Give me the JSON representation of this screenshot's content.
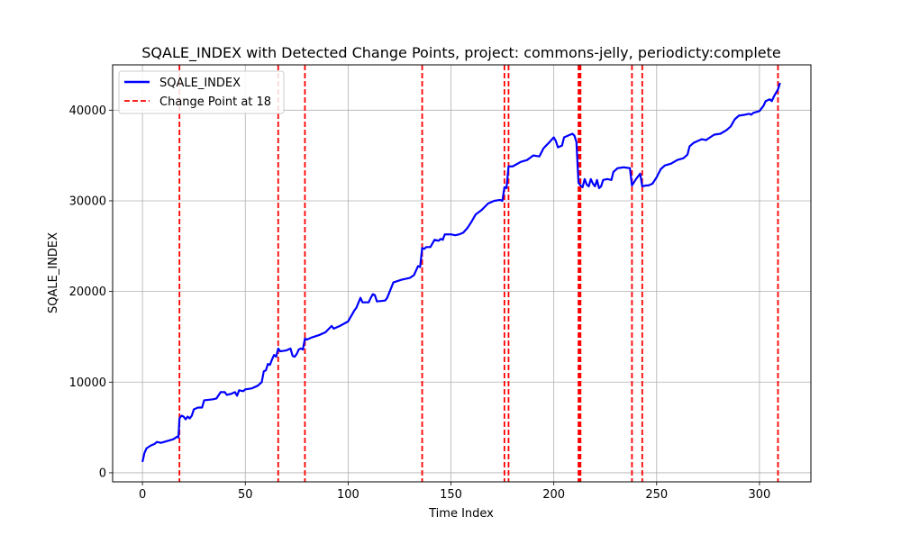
{
  "chart_data": {
    "type": "line",
    "title": "SQALE_INDEX with Detected Change Points, project: commons-jelly, periodicty:complete",
    "xlabel": "Time Index",
    "ylabel": "SQALE_INDEX",
    "xlim": [
      -14.5,
      325
    ],
    "ylim": [
      -1000,
      45000
    ],
    "x_ticks": [
      0,
      50,
      100,
      150,
      200,
      250,
      300
    ],
    "y_ticks": [
      0,
      10000,
      20000,
      30000,
      40000
    ],
    "grid": true,
    "legend_position": "top-left",
    "series": [
      {
        "name": "SQALE_INDEX",
        "color": "#0000ff",
        "points": [
          [
            0,
            1200
          ],
          [
            1,
            2200
          ],
          [
            2,
            2700
          ],
          [
            4,
            3000
          ],
          [
            6,
            3200
          ],
          [
            7,
            3400
          ],
          [
            9,
            3300
          ],
          [
            12,
            3500
          ],
          [
            15,
            3700
          ],
          [
            17,
            4000
          ],
          [
            17.5,
            3900
          ],
          [
            18,
            6000
          ],
          [
            19,
            6300
          ],
          [
            20,
            6200
          ],
          [
            21,
            5900
          ],
          [
            22,
            6200
          ],
          [
            23,
            6000
          ],
          [
            24,
            6300
          ],
          [
            25,
            7000
          ],
          [
            27,
            7200
          ],
          [
            29,
            7200
          ],
          [
            30,
            8000
          ],
          [
            34,
            8100
          ],
          [
            36,
            8200
          ],
          [
            38,
            8900
          ],
          [
            40,
            8900
          ],
          [
            41,
            8600
          ],
          [
            43,
            8700
          ],
          [
            45,
            8900
          ],
          [
            46,
            8500
          ],
          [
            47,
            9100
          ],
          [
            49,
            9000
          ],
          [
            50,
            9200
          ],
          [
            53,
            9300
          ],
          [
            56,
            9600
          ],
          [
            58,
            10000
          ],
          [
            59,
            11200
          ],
          [
            60,
            11300
          ],
          [
            61,
            12000
          ],
          [
            62,
            11900
          ],
          [
            63,
            12500
          ],
          [
            64,
            13000
          ],
          [
            65,
            12800
          ],
          [
            66,
            13700
          ],
          [
            67,
            13400
          ],
          [
            70,
            13500
          ],
          [
            72,
            13700
          ],
          [
            73,
            12900
          ],
          [
            74,
            12800
          ],
          [
            75,
            13100
          ],
          [
            76,
            13600
          ],
          [
            77,
            13700
          ],
          [
            78,
            13600
          ],
          [
            79,
            14800
          ],
          [
            80,
            14700
          ],
          [
            82,
            14900
          ],
          [
            86,
            15200
          ],
          [
            89,
            15500
          ],
          [
            92,
            16200
          ],
          [
            93,
            15900
          ],
          [
            96,
            16200
          ],
          [
            100,
            16700
          ],
          [
            103,
            17900
          ],
          [
            104,
            18200
          ],
          [
            106,
            19300
          ],
          [
            107,
            18800
          ],
          [
            110,
            18800
          ],
          [
            111,
            19300
          ],
          [
            112,
            19700
          ],
          [
            113,
            19600
          ],
          [
            114,
            18900
          ],
          [
            118,
            19000
          ],
          [
            119,
            19300
          ],
          [
            122,
            21000
          ],
          [
            126,
            21300
          ],
          [
            128,
            21400
          ],
          [
            130,
            21500
          ],
          [
            132,
            21800
          ],
          [
            134,
            22800
          ],
          [
            135,
            22700
          ],
          [
            136,
            24800
          ],
          [
            137,
            24700
          ],
          [
            138,
            24900
          ],
          [
            140,
            24900
          ],
          [
            142,
            25700
          ],
          [
            144,
            25600
          ],
          [
            145,
            25800
          ],
          [
            146,
            25700
          ],
          [
            147,
            26300
          ],
          [
            150,
            26300
          ],
          [
            152,
            26200
          ],
          [
            154,
            26300
          ],
          [
            156,
            26500
          ],
          [
            158,
            27000
          ],
          [
            160,
            27700
          ],
          [
            162,
            28500
          ],
          [
            165,
            29000
          ],
          [
            168,
            29700
          ],
          [
            171,
            30000
          ],
          [
            174,
            30100
          ],
          [
            175,
            30000
          ],
          [
            176,
            31500
          ],
          [
            177,
            31400
          ],
          [
            178,
            33800
          ],
          [
            180,
            33800
          ],
          [
            184,
            34300
          ],
          [
            187,
            34500
          ],
          [
            190,
            35000
          ],
          [
            193,
            34900
          ],
          [
            195,
            35800
          ],
          [
            198,
            36500
          ],
          [
            200,
            37000
          ],
          [
            201,
            36600
          ],
          [
            202,
            35900
          ],
          [
            204,
            36100
          ],
          [
            205,
            37000
          ],
          [
            207,
            37200
          ],
          [
            209,
            37400
          ],
          [
            210,
            37200
          ],
          [
            211,
            36500
          ],
          [
            212,
            32000
          ],
          [
            213,
            31700
          ],
          [
            214,
            31500
          ],
          [
            215,
            32400
          ],
          [
            216,
            31800
          ],
          [
            217,
            31600
          ],
          [
            218,
            32400
          ],
          [
            219,
            31900
          ],
          [
            220,
            31600
          ],
          [
            221,
            32300
          ],
          [
            222,
            31400
          ],
          [
            223,
            31600
          ],
          [
            224,
            32300
          ],
          [
            226,
            32400
          ],
          [
            228,
            32300
          ],
          [
            229,
            33200
          ],
          [
            231,
            33600
          ],
          [
            234,
            33700
          ],
          [
            237,
            33600
          ],
          [
            238,
            31700
          ],
          [
            240,
            32400
          ],
          [
            242,
            33000
          ],
          [
            243,
            31600
          ],
          [
            245,
            31700
          ],
          [
            246,
            31700
          ],
          [
            248,
            31900
          ],
          [
            250,
            32600
          ],
          [
            252,
            33500
          ],
          [
            254,
            33900
          ],
          [
            257,
            34100
          ],
          [
            260,
            34500
          ],
          [
            263,
            34700
          ],
          [
            265,
            35100
          ],
          [
            266,
            36000
          ],
          [
            268,
            36400
          ],
          [
            270,
            36600
          ],
          [
            272,
            36800
          ],
          [
            274,
            36700
          ],
          [
            276,
            37000
          ],
          [
            278,
            37300
          ],
          [
            281,
            37400
          ],
          [
            284,
            37800
          ],
          [
            286,
            38200
          ],
          [
            288,
            39000
          ],
          [
            290,
            39400
          ],
          [
            293,
            39500
          ],
          [
            295,
            39600
          ],
          [
            296,
            39500
          ],
          [
            297,
            39700
          ],
          [
            300,
            39900
          ],
          [
            302,
            40500
          ],
          [
            303,
            41000
          ],
          [
            305,
            41200
          ],
          [
            306,
            41000
          ],
          [
            307,
            41500
          ],
          [
            309,
            42300
          ],
          [
            310,
            43000
          ]
        ]
      }
    ],
    "change_point_label": "Change Point at 18",
    "change_point_color": "#ff0000",
    "change_points": [
      18,
      66,
      79,
      136,
      176,
      178,
      212,
      212.5,
      213,
      238,
      243,
      309
    ]
  }
}
